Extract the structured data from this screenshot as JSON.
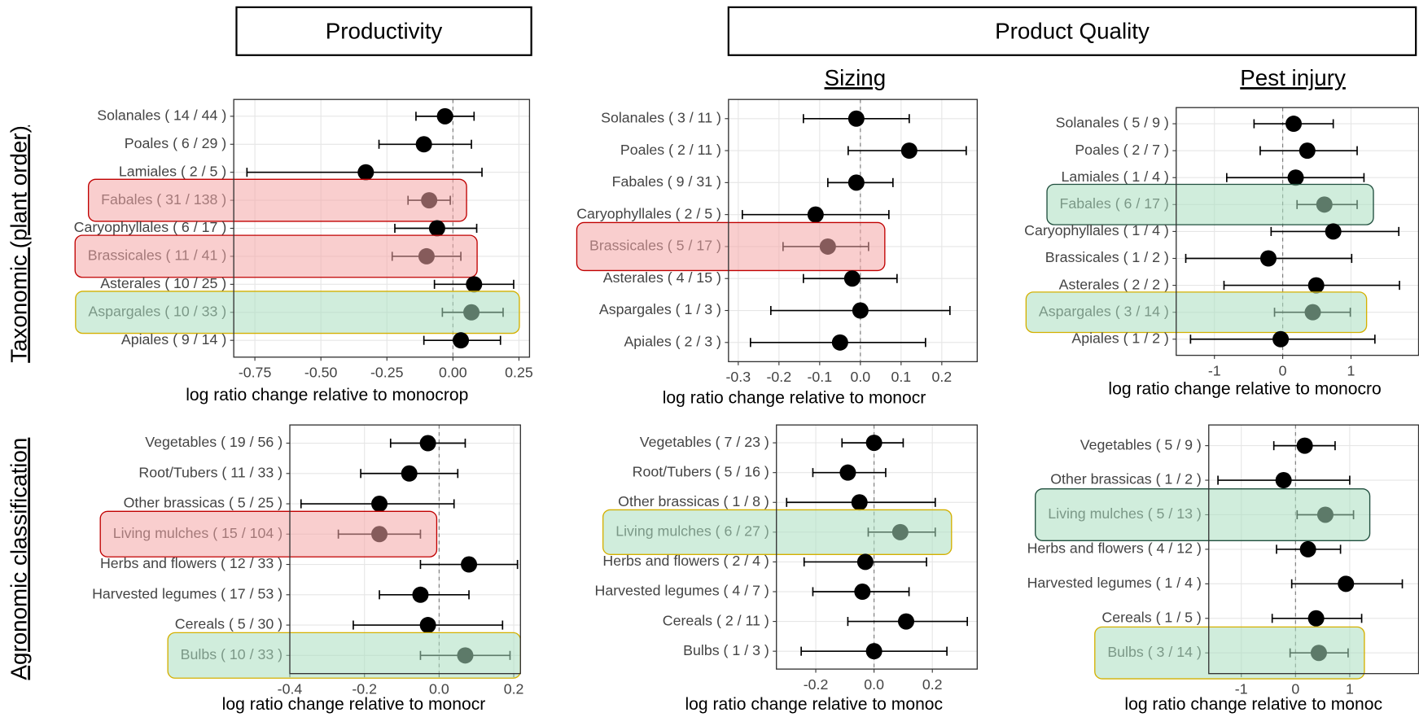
{
  "headers": {
    "productivity": "Productivity",
    "product_quality": "Product Quality",
    "sizing": "Sizing",
    "pest_injury": "Pest injury",
    "taxonomic": "Taxonomic (plant order)",
    "agronomic": "Agronomic classification"
  },
  "chart_data": [
    {
      "type": "dot",
      "color": "#000000",
      "grid": true,
      "reference_line": 0,
      "categories": [
        "Solanales ( 14 / 44 )",
        "Poales ( 6 / 29 )",
        "Lamiales ( 2 / 5 )",
        "Fabales ( 31 / 138 )",
        "Caryophyllales ( 6 / 17 )",
        "Brassicales ( 11 / 41 )",
        "Asterales ( 10 / 25 )",
        "Aspargales ( 10 / 33 )",
        "Apiales ( 9 / 14 )"
      ],
      "values": [
        -0.03,
        -0.11,
        -0.33,
        -0.09,
        -0.06,
        -0.1,
        0.08,
        0.07,
        0.03
      ],
      "ci_low": [
        -0.14,
        -0.28,
        -0.78,
        -0.17,
        -0.22,
        -0.23,
        -0.07,
        -0.04,
        -0.11
      ],
      "ci_high": [
        0.08,
        0.07,
        0.11,
        -0.01,
        0.09,
        0.03,
        0.23,
        0.19,
        0.18
      ],
      "highlight": [
        null,
        null,
        null,
        {
          "fill": "#f4a6a6",
          "stroke": "#c00000"
        },
        null,
        {
          "fill": "#f4a6a6",
          "stroke": "#c00000"
        },
        null,
        {
          "fill": "#a9dfbf",
          "stroke": "#d4b000"
        },
        null
      ],
      "xlim": [
        -0.83,
        0.29
      ],
      "xticks": [
        -0.75,
        {
          "value": -0.5,
          "label": "-0.50"
        },
        -0.25,
        {
          "value": 0,
          "label": "0.00"
        },
        0.25
      ],
      "x_label": "log ratio change relative to monocrop"
    },
    {
      "type": "dot",
      "color": "#000000",
      "grid": true,
      "reference_line": 0,
      "categories": [
        "Solanales ( 3 / 11 )",
        "Poales ( 2 / 11 )",
        "Fabales ( 9 / 31 )",
        "Caryophyllales ( 2 / 5 )",
        "Brassicales ( 5 / 17 )",
        "Asterales ( 4 / 15 )",
        "Aspargales ( 1 / 3 )",
        "Apiales ( 2 / 3 )"
      ],
      "values": [
        -0.01,
        0.12,
        -0.01,
        -0.11,
        -0.08,
        -0.02,
        0.0,
        -0.05
      ],
      "ci_low": [
        -0.14,
        -0.03,
        -0.08,
        -0.29,
        -0.19,
        -0.14,
        -0.22,
        -0.27
      ],
      "ci_high": [
        0.12,
        0.26,
        0.08,
        0.07,
        0.02,
        0.09,
        0.22,
        0.16
      ],
      "highlight": [
        null,
        null,
        null,
        null,
        {
          "fill": "#f4a6a6",
          "stroke": "#c00000"
        },
        null,
        null,
        null
      ],
      "xlim": [
        -0.324,
        0.287
      ],
      "xticks": [
        -0.3,
        -0.2,
        -0.1,
        {
          "value": 0,
          "label": "0.0"
        },
        0.1,
        0.2
      ],
      "x_label": "log ratio change relative to monocr"
    },
    {
      "type": "dot",
      "color": "#000000",
      "grid": true,
      "reference_line": 0,
      "categories": [
        "Solanales ( 5 / 9 )",
        "Poales ( 2 / 7 )",
        "Lamiales ( 1 / 4 )",
        "Fabales ( 6 / 17 )",
        "Caryophyllales ( 1 / 4 )",
        "Brassicales ( 1 / 2 )",
        "Asterales ( 2 / 2 )",
        "Aspargales ( 3 / 14 )",
        "Apiales ( 1 / 2 )"
      ],
      "values": [
        0.16,
        0.36,
        0.19,
        0.61,
        0.74,
        -0.21,
        0.49,
        0.44,
        -0.03
      ],
      "ci_low": [
        -0.42,
        -0.33,
        -0.82,
        0.21,
        -0.17,
        -1.42,
        -0.86,
        -0.12,
        -1.35
      ],
      "ci_high": [
        0.74,
        1.09,
        1.19,
        1.09,
        1.7,
        1.01,
        1.71,
        0.99,
        1.35
      ],
      "highlight": [
        null,
        null,
        null,
        {
          "fill": "#a9dfbf",
          "stroke": "#1f4e3d"
        },
        null,
        null,
        null,
        {
          "fill": "#a9dfbf",
          "stroke": "#d4b000"
        },
        null
      ],
      "xlim": [
        -1.56,
        1.99
      ],
      "xticks": [
        -1,
        0,
        1
      ],
      "x_label": "log ratio change relative to monocro"
    },
    {
      "type": "dot",
      "color": "#000000",
      "grid": true,
      "reference_line": 0,
      "categories": [
        "Vegetables ( 19 / 56 )",
        "Root/Tubers ( 11 / 33 )",
        "Other brassicas ( 5 / 25 )",
        "Living mulches ( 15 / 104 )",
        "Herbs and flowers ( 12 / 33 )",
        "Harvested legumes ( 17 / 53 )",
        "Cereals ( 5 / 30 )",
        "Bulbs ( 10 / 33 )"
      ],
      "values": [
        -0.03,
        -0.08,
        -0.16,
        -0.16,
        0.08,
        -0.05,
        -0.03,
        0.07
      ],
      "ci_low": [
        -0.13,
        -0.21,
        -0.37,
        -0.27,
        -0.05,
        -0.16,
        -0.23,
        -0.05
      ],
      "ci_high": [
        0.07,
        0.05,
        0.04,
        -0.05,
        0.21,
        0.08,
        0.17,
        0.19
      ],
      "highlight": [
        null,
        null,
        null,
        {
          "fill": "#f4a6a6",
          "stroke": "#c00000"
        },
        null,
        null,
        null,
        {
          "fill": "#a9dfbf",
          "stroke": "#d4b000"
        }
      ],
      "xlim": [
        -0.4,
        0.218
      ],
      "xticks": [
        -0.4,
        -0.2,
        {
          "value": 0,
          "label": "0.0"
        },
        0.2
      ],
      "x_label": "log ratio change relative to monocr"
    },
    {
      "type": "dot",
      "color": "#000000",
      "grid": true,
      "reference_line": 0,
      "categories": [
        "Vegetables ( 7 / 23 )",
        "Root/Tubers ( 5 / 16 )",
        "Other brassicas ( 1 / 8 )",
        "Living mulches ( 6 / 27 )",
        "Herbs and flowers ( 2 / 4 )",
        "Harvested legumes ( 4 / 7 )",
        "Cereals ( 2 / 11 )",
        "Bulbs ( 1 / 3 )"
      ],
      "values": [
        0.0,
        -0.09,
        -0.05,
        0.09,
        -0.03,
        -0.04,
        0.11,
        0.0
      ],
      "ci_low": [
        -0.11,
        -0.21,
        -0.3,
        -0.02,
        -0.24,
        -0.21,
        -0.09,
        -0.25
      ],
      "ci_high": [
        0.1,
        0.04,
        0.21,
        0.21,
        0.18,
        0.12,
        0.32,
        0.25
      ],
      "highlight": [
        null,
        null,
        null,
        {
          "fill": "#a9dfbf",
          "stroke": "#d4b000"
        },
        null,
        null,
        null,
        null
      ],
      "xlim": [
        -0.335,
        0.354
      ],
      "xticks": [
        -0.2,
        {
          "value": 0,
          "label": "0.0"
        },
        0.2
      ],
      "x_label": "log ratio change relative to monoc"
    },
    {
      "type": "dot",
      "color": "#000000",
      "grid": true,
      "reference_line": 0,
      "categories": [
        "Vegetables ( 5 / 9 )",
        "Other brassicas ( 1 / 2 )",
        "Living mulches ( 5 / 13 )",
        "Herbs and flowers ( 4 / 12 )",
        "Harvested legumes ( 1 / 4 )",
        "Cereals ( 1 / 5 )",
        "Bulbs ( 3 / 14 )"
      ],
      "values": [
        0.17,
        -0.22,
        0.55,
        0.23,
        0.93,
        0.38,
        0.43
      ],
      "ci_low": [
        -0.4,
        -1.43,
        0.03,
        -0.35,
        -0.07,
        -0.43,
        -0.1
      ],
      "ci_high": [
        0.73,
        1.0,
        1.07,
        0.83,
        1.97,
        1.22,
        0.97
      ],
      "highlight": [
        null,
        null,
        {
          "fill": "#a9dfbf",
          "stroke": "#1f4e3d"
        },
        null,
        null,
        null,
        {
          "fill": "#a9dfbf",
          "stroke": "#d4b000"
        }
      ],
      "xlim": [
        -1.6,
        2.27
      ],
      "xticks": [
        -1,
        0,
        1
      ],
      "x_label": "log ratio change relative to monoc"
    }
  ]
}
